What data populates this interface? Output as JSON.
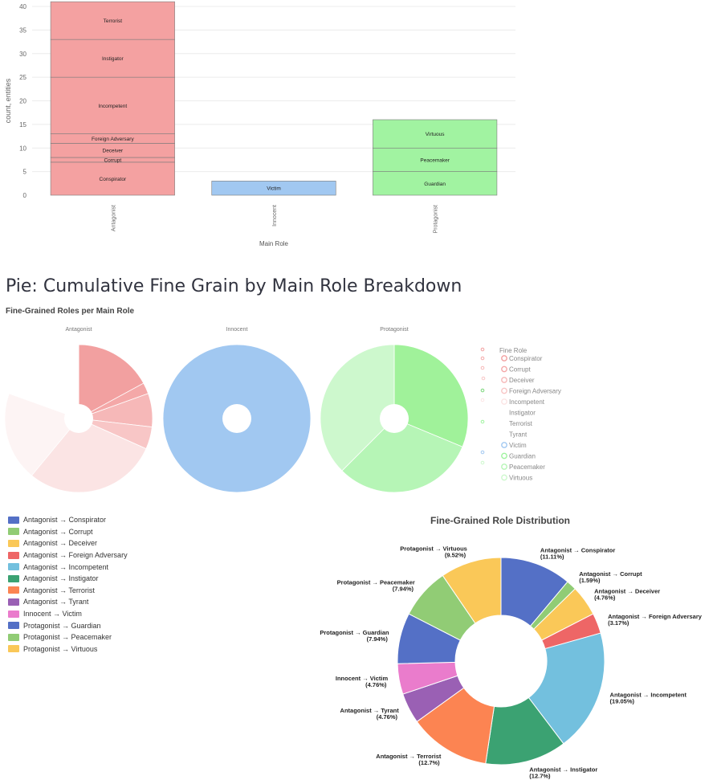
{
  "page": {
    "section_title": "Pie: Cumulative Fine Grain by Main Role Breakdown",
    "pies_subtitle": "Fine-Grained Roles per Main Role",
    "donut_title": "Fine-Grained Role Distribution",
    "donut_legend": [
      {
        "label": "Antagonist → Conspirator",
        "color": "#5470c6"
      },
      {
        "label": "Antagonist → Corrupt",
        "color": "#91cc75"
      },
      {
        "label": "Antagonist → Deceiver",
        "color": "#fac858"
      },
      {
        "label": "Antagonist → Foreign Adversary",
        "color": "#ee6666"
      },
      {
        "label": "Antagonist → Incompetent",
        "color": "#73c0de"
      },
      {
        "label": "Antagonist → Instigator",
        "color": "#3ba272"
      },
      {
        "label": "Antagonist → Terrorist",
        "color": "#fc8452"
      },
      {
        "label": "Antagonist → Tyrant",
        "color": "#9a60b4"
      },
      {
        "label": "Innocent → Victim",
        "color": "#ea7ccc"
      },
      {
        "label": "Protagonist → Guardian",
        "color": "#5470c6"
      },
      {
        "label": "Protagonist → Peacemaker",
        "color": "#91cc75"
      },
      {
        "label": "Protagonist → Virtuous",
        "color": "#fac858"
      }
    ],
    "pies_legend_title": "Fine Role",
    "pies_legend": [
      {
        "label": "Conspirator",
        "color": "#f2a0a0"
      },
      {
        "label": "Corrupt",
        "color": "#f4a8a8"
      },
      {
        "label": "Deceiver",
        "color": "#f6b8b8"
      },
      {
        "label": "Foreign Adversary",
        "color": "#f8c6c6"
      },
      {
        "label": "Incompetent",
        "color": "#fbe4e4"
      },
      {
        "label": "Instigator",
        "color": "#ffffff"
      },
      {
        "label": "Terrorist",
        "color": "#ffffff"
      },
      {
        "label": "Tyrant",
        "color": "#ffffff"
      },
      {
        "label": "Victim",
        "color": "#a1c8f1"
      },
      {
        "label": "Guardian",
        "color": "#9ff39f"
      },
      {
        "label": "Peacemaker",
        "color": "#b6f5b6"
      },
      {
        "label": "Virtuous",
        "color": "#cdf8cd"
      }
    ]
  },
  "chart_data": [
    {
      "type": "bar",
      "stacked": true,
      "xlabel": "Main Role",
      "ylabel": "count, entities",
      "ylim": [
        0,
        40
      ],
      "yticks": [
        0,
        5,
        10,
        15,
        20,
        25,
        30,
        35,
        40
      ],
      "categories": [
        "Antagonist",
        "Innocent",
        "Protagonist"
      ],
      "colors": {
        "Antagonist": "#f4a1a1",
        "Innocent": "#a1c8f1",
        "Protagonist": "#a1f3a1"
      },
      "stacks": [
        {
          "category": "Antagonist",
          "segments": [
            {
              "label": "Conspirator",
              "value": 7
            },
            {
              "label": "Corrupt",
              "value": 1
            },
            {
              "label": "Deceiver",
              "value": 3
            },
            {
              "label": "Foreign Adversary",
              "value": 2
            },
            {
              "label": "Incompetent",
              "value": 12
            },
            {
              "label": "Instigator",
              "value": 8
            },
            {
              "label": "Terrorist",
              "value": 8
            }
          ]
        },
        {
          "category": "Innocent",
          "segments": [
            {
              "label": "Victim",
              "value": 3
            }
          ]
        },
        {
          "category": "Protagonist",
          "segments": [
            {
              "label": "Guardian",
              "value": 5
            },
            {
              "label": "Peacemaker",
              "value": 5
            },
            {
              "label": "Virtuous",
              "value": 6
            }
          ]
        }
      ]
    },
    {
      "type": "pie",
      "subplots": [
        {
          "title": "Antagonist",
          "slices": [
            {
              "label": "Conspirator",
              "value": 7,
              "color": "#f2a0a0"
            },
            {
              "label": "Corrupt",
              "value": 1,
              "color": "#f4a8a8"
            },
            {
              "label": "Deceiver",
              "value": 3,
              "color": "#f6b8b8"
            },
            {
              "label": "Foreign Adversary",
              "value": 2,
              "color": "#f8c6c6"
            },
            {
              "label": "Incompetent",
              "value": 12,
              "color": "#fbe4e4"
            },
            {
              "label": "Instigator",
              "value": 8,
              "color": "#fdf4f4"
            },
            {
              "label": "Terrorist",
              "value": 8,
              "color": "#ffffff"
            }
          ]
        },
        {
          "title": "Innocent",
          "slices": [
            {
              "label": "Victim",
              "value": 3,
              "color": "#a1c8f1"
            }
          ]
        },
        {
          "title": "Protagonist",
          "slices": [
            {
              "label": "Guardian",
              "value": 5,
              "color": "#a0f29a"
            },
            {
              "label": "Peacemaker",
              "value": 5,
              "color": "#b6f5b6"
            },
            {
              "label": "Virtuous",
              "value": 6,
              "color": "#cdf8cd"
            }
          ]
        }
      ]
    },
    {
      "type": "pie",
      "title": "Fine-Grained Role Distribution",
      "slices": [
        {
          "label": "Antagonist → Conspirator",
          "value": 7,
          "percent": "11.11%",
          "color": "#5470c6"
        },
        {
          "label": "Antagonist → Corrupt",
          "value": 1,
          "percent": "1.59%",
          "color": "#91cc75"
        },
        {
          "label": "Antagonist → Deceiver",
          "value": 3,
          "percent": "4.76%",
          "color": "#fac858"
        },
        {
          "label": "Antagonist → Foreign Adversary",
          "value": 2,
          "percent": "3.17%",
          "color": "#ee6666"
        },
        {
          "label": "Antagonist → Incompetent",
          "value": 12,
          "percent": "19.05%",
          "color": "#73c0de"
        },
        {
          "label": "Antagonist → Instigator",
          "value": 8,
          "percent": "12.7%",
          "color": "#3ba272"
        },
        {
          "label": "Antagonist → Terrorist",
          "value": 8,
          "percent": "12.7%",
          "color": "#fc8452"
        },
        {
          "label": "Antagonist → Tyrant",
          "value": 3,
          "percent": "4.76%",
          "color": "#9a60b4"
        },
        {
          "label": "Innocent → Victim",
          "value": 3,
          "percent": "4.76%",
          "color": "#ea7ccc"
        },
        {
          "label": "Protagonist → Guardian",
          "value": 5,
          "percent": "7.94%",
          "color": "#5470c6"
        },
        {
          "label": "Protagonist → Peacemaker",
          "value": 5,
          "percent": "7.94%",
          "color": "#91cc75"
        },
        {
          "label": "Protagonist → Virtuous",
          "value": 6,
          "percent": "9.52%",
          "color": "#fac858"
        }
      ]
    }
  ]
}
